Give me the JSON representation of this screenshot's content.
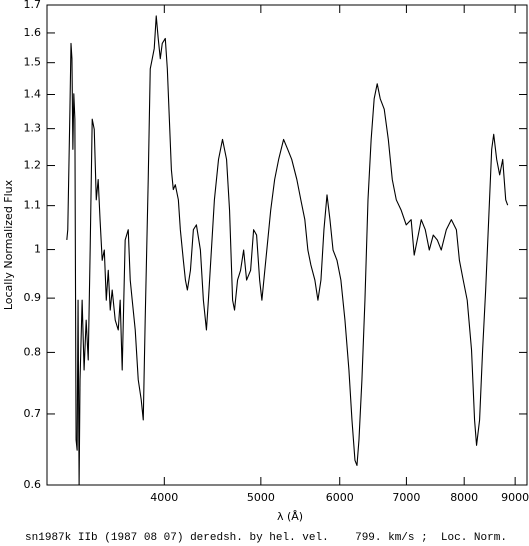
{
  "chart_data": {
    "type": "line",
    "xlabel": "λ (Å)",
    "ylabel": "Locally Normalized Flux",
    "caption": "sn1987k IIb (1987 08 07) deredsh. by hel. vel.    799. km/s ;  Loc. Norm.",
    "xscale": "log",
    "yscale": "log",
    "xlim": [
      3050,
      9250
    ],
    "ylim": [
      0.6,
      1.7
    ],
    "xticks": [
      4000,
      5000,
      6000,
      7000,
      8000,
      9000
    ],
    "yticks": [
      0.6,
      0.7,
      0.8,
      0.9,
      1,
      1.1,
      1.2,
      1.3,
      1.4,
      1.5,
      1.6,
      1.7
    ],
    "x": [
      3193,
      3200,
      3216,
      3224,
      3231,
      3238,
      3245,
      3253,
      3262,
      3270,
      3277,
      3285,
      3292,
      3308,
      3323,
      3339,
      3355,
      3370,
      3386,
      3402,
      3418,
      3433,
      3448,
      3465,
      3482,
      3498,
      3514,
      3530,
      3546,
      3571,
      3596,
      3612,
      3629,
      3654,
      3680,
      3697,
      3714,
      3740,
      3766,
      3792,
      3810,
      3827,
      3854,
      3872,
      3890,
      3908,
      3926,
      3944,
      3963,
      3981,
      4009,
      4028,
      4047,
      4066,
      4084,
      4103,
      4132,
      4151,
      4180,
      4200,
      4219,
      4249,
      4278,
      4308,
      4348,
      4378,
      4409,
      4429,
      4460,
      4491,
      4534,
      4576,
      4619,
      4651,
      4684,
      4705,
      4738,
      4771,
      4805,
      4838,
      4883,
      4917,
      4951,
      4986,
      5012,
      5046,
      5081,
      5115,
      5162,
      5210,
      5270,
      5320,
      5370,
      5434,
      5484,
      5535,
      5574,
      5613,
      5665,
      5705,
      5745,
      5785,
      5826,
      5866,
      5908,
      5962,
      6016,
      6073,
      6129,
      6172,
      6215,
      6244,
      6273,
      6316,
      6360,
      6405,
      6452,
      6497,
      6543,
      6589,
      6650,
      6713,
      6775,
      6838,
      6916,
      6997,
      7077,
      7127,
      7194,
      7244,
      7312,
      7380,
      7448,
      7518,
      7587,
      7676,
      7766,
      7857,
      7912,
      7982,
      8056,
      8137,
      8194,
      8232,
      8290,
      8348,
      8407,
      8466,
      8525,
      8565,
      8624,
      8684,
      8745,
      8806,
      8846
    ],
    "series": [
      {
        "color": "#000000",
        "values": [
          1.021,
          1.044,
          1.356,
          1.564,
          1.513,
          1.243,
          1.402,
          1.327,
          0.662,
          0.647,
          0.896,
          0.6,
          0.754,
          0.896,
          0.77,
          0.858,
          0.787,
          0.999,
          1.327,
          1.298,
          1.114,
          1.164,
          1.067,
          0.977,
          0.999,
          0.896,
          0.956,
          0.877,
          0.916,
          0.858,
          0.84,
          0.896,
          0.77,
          1.021,
          1.044,
          0.936,
          0.896,
          0.84,
          0.754,
          0.722,
          0.691,
          0.858,
          1.164,
          1.48,
          1.513,
          1.547,
          1.66,
          1.581,
          1.513,
          1.564,
          1.581,
          1.48,
          1.327,
          1.189,
          1.139,
          1.151,
          1.114,
          1.044,
          0.977,
          0.936,
          0.916,
          0.956,
          1.044,
          1.055,
          0.999,
          0.896,
          0.84,
          0.896,
          0.999,
          1.114,
          1.216,
          1.27,
          1.216,
          1.089,
          0.896,
          0.877,
          0.936,
          0.956,
          0.999,
          0.936,
          0.956,
          1.044,
          1.032,
          0.936,
          0.896,
          0.956,
          1.021,
          1.089,
          1.164,
          1.216,
          1.27,
          1.243,
          1.216,
          1.164,
          1.114,
          1.067,
          0.999,
          0.967,
          0.936,
          0.896,
          0.936,
          1.044,
          1.126,
          1.067,
          0.999,
          0.977,
          0.936,
          0.858,
          0.77,
          0.691,
          0.633,
          0.626,
          0.662,
          0.754,
          0.896,
          1.114,
          1.27,
          1.387,
          1.433,
          1.387,
          1.356,
          1.27,
          1.164,
          1.114,
          1.089,
          1.055,
          1.067,
          0.988,
          1.032,
          1.067,
          1.044,
          0.999,
          1.032,
          1.021,
          0.999,
          1.044,
          1.067,
          1.044,
          0.977,
          0.936,
          0.896,
          0.804,
          0.691,
          0.654,
          0.691,
          0.804,
          0.916,
          1.067,
          1.243,
          1.284,
          1.216,
          1.176,
          1.216,
          1.114,
          1.101
        ]
      }
    ]
  }
}
